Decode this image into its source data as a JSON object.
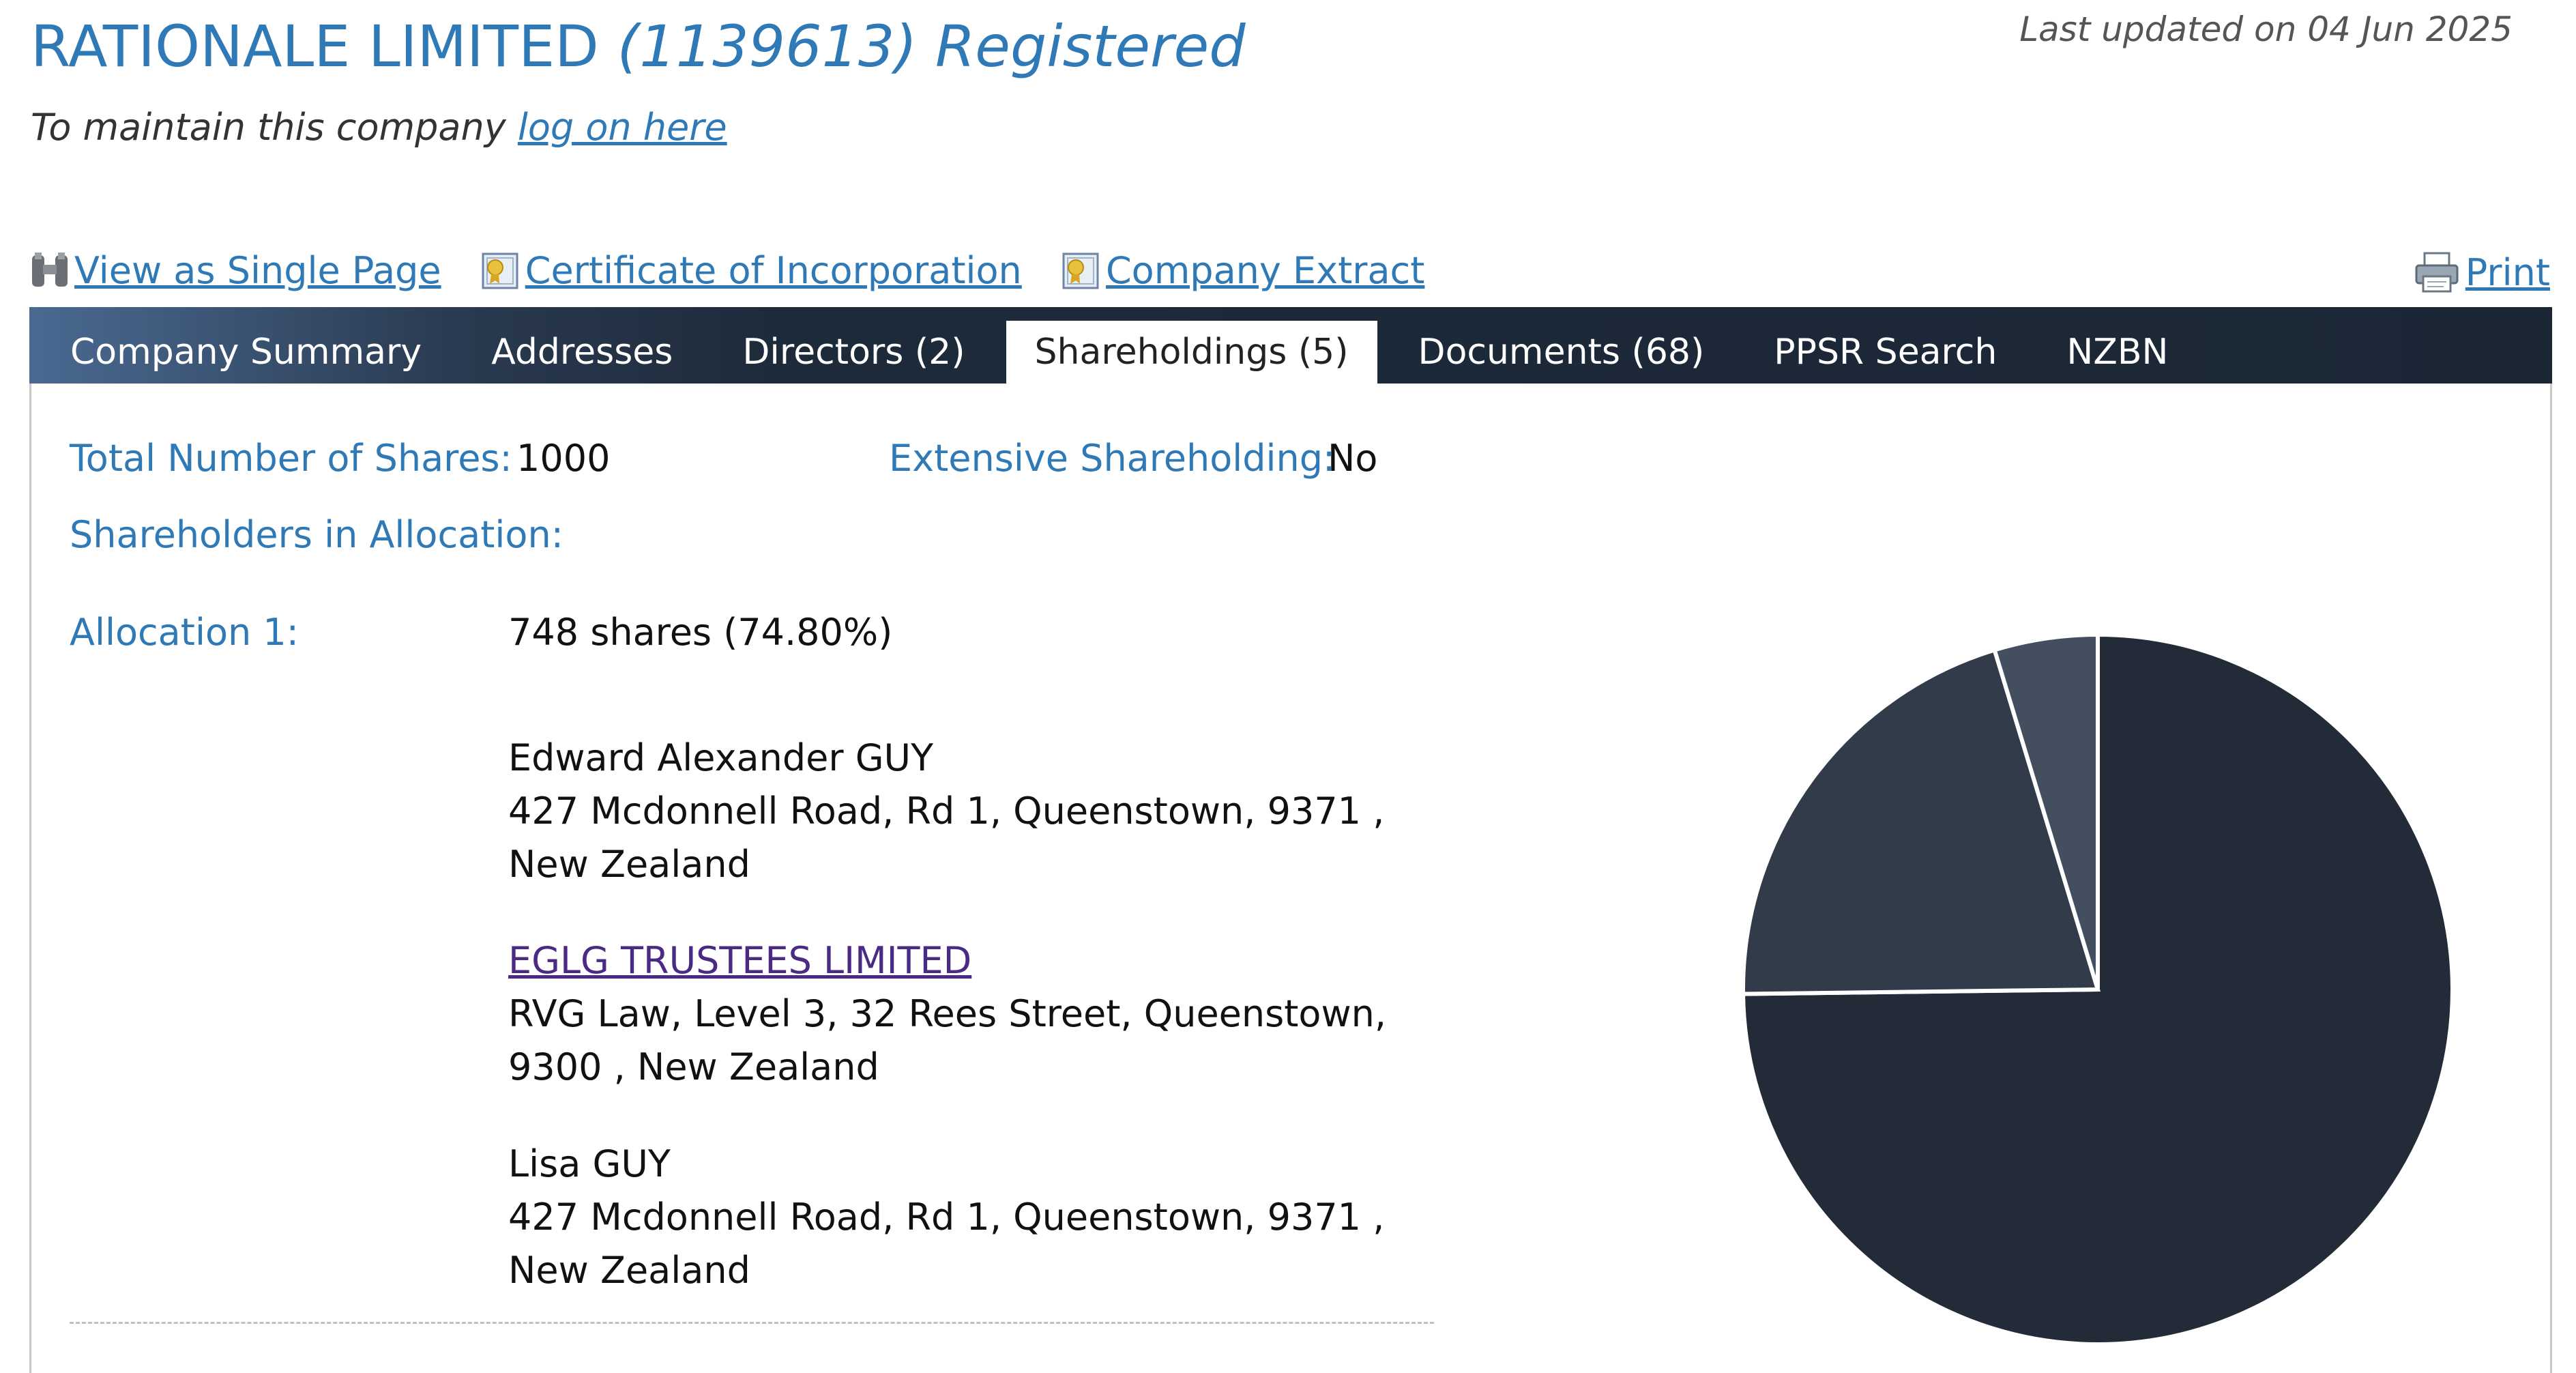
{
  "header": {
    "company_name": "RATIONALE LIMITED",
    "company_number": "(1139613)",
    "status": "Registered",
    "last_updated": "Last updated on 04 Jun 2025",
    "maintain_prefix": "To maintain this company",
    "maintain_link": "log on here"
  },
  "links": {
    "single_page": "View as Single Page",
    "certificate": "Certificate of Incorporation",
    "extract": "Company Extract",
    "print": "Print"
  },
  "tabs": [
    {
      "label": "Company Summary"
    },
    {
      "label": "Addresses"
    },
    {
      "label": "Directors (2)"
    },
    {
      "label": "Shareholdings (5)",
      "active": true
    },
    {
      "label": "Documents (68)"
    },
    {
      "label": "PPSR Search"
    },
    {
      "label": "NZBN"
    }
  ],
  "shareholdings": {
    "total_label": "Total Number of Shares:",
    "total_value": "1000",
    "extensive_label": "Extensive Shareholding:",
    "extensive_value": "No",
    "shareholders_label": "Shareholders in Allocation:",
    "allocation_label": "Allocation 1:",
    "allocation_value": "748 shares (74.80%)",
    "holders": [
      {
        "name": "Edward Alexander GUY",
        "address": "427 Mcdonnell Road, Rd 1, Queenstown, 9371 , New Zealand"
      },
      {
        "name": "EGLG TRUSTEES LIMITED",
        "address": "RVG Law, Level 3, 32 Rees Street, Queenstown, 9300 , New Zealand"
      },
      {
        "name": "Lisa GUY",
        "address": "427 Mcdonnell Road, Rd 1, Queenstown, 9371 , New Zealand"
      }
    ]
  },
  "colors": {
    "link": "#2f79b7",
    "visited_link": "#4b2a85",
    "tabbar": "#1b2735",
    "pie": [
      "#232b38",
      "#313b4a",
      "#434e5e"
    ]
  },
  "icons": {
    "single_page": "binoculars-icon",
    "certificate": "certificate-icon",
    "extract": "certificate-icon",
    "print": "printer-icon"
  },
  "chart_data": {
    "type": "pie",
    "slices": [
      {
        "value": 74.8
      },
      {
        "value": 20.5
      },
      {
        "value": 4.7
      }
    ]
  }
}
